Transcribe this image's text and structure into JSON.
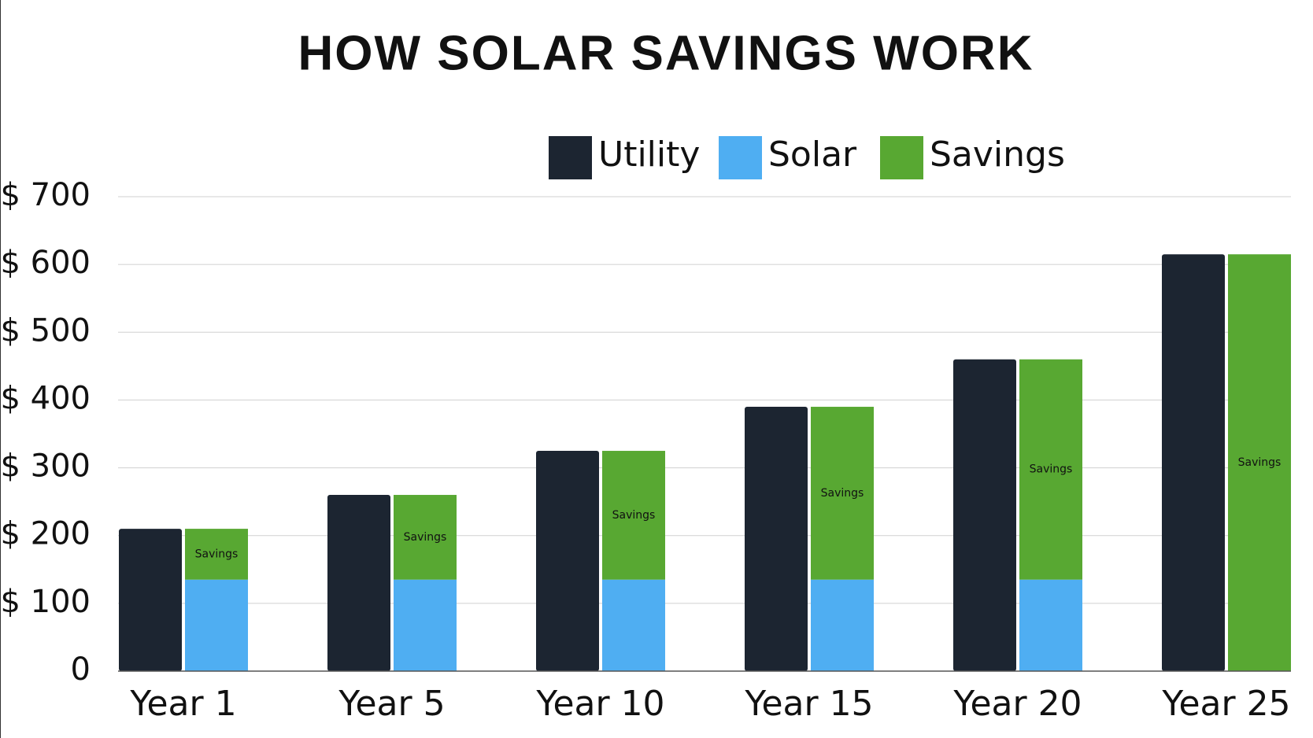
{
  "chart_data": {
    "type": "bar",
    "title": "HOW SOLAR SAVINGS WORK",
    "categories": [
      "Year 1",
      "Year 5",
      "Year 10",
      "Year 15",
      "Year 20",
      "Year 25"
    ],
    "series": [
      {
        "name": "Utility",
        "color": "#1c2531",
        "values": [
          210,
          260,
          325,
          390,
          460,
          615
        ]
      },
      {
        "name": "Solar",
        "color": "#4faef2",
        "values": [
          135,
          135,
          135,
          135,
          135,
          0
        ]
      },
      {
        "name": "Savings",
        "color": "#58a832",
        "values": [
          75,
          125,
          190,
          255,
          325,
          615
        ]
      }
    ],
    "ylim": [
      0,
      700
    ],
    "yticks": [
      0,
      {
        "value": 100,
        "label": "$ 100"
      },
      {
        "value": 200,
        "label": "$ 200"
      },
      {
        "value": 300,
        "label": "$ 300"
      },
      {
        "value": 400,
        "label": "$ 400"
      },
      {
        "value": 500,
        "label": "$ 500"
      },
      {
        "value": 600,
        "label": "$ 600"
      },
      {
        "value": 700,
        "label": "$ 700"
      }
    ],
    "grid": true,
    "legend": "top"
  }
}
